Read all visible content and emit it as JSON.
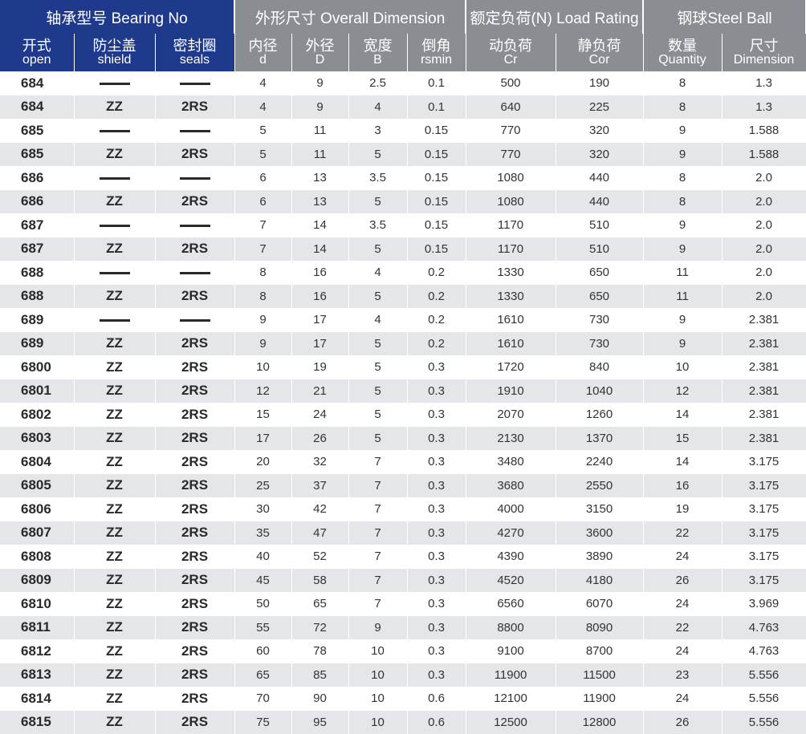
{
  "header": {
    "groups": {
      "bearing": "轴承型号 Bearing No",
      "dimension": "外形尺寸 Overall Dimension",
      "load": "额定负荷(N) Load Rating",
      "ball": "钢球Steel Ball"
    },
    "columns": {
      "open": {
        "zh": "开式",
        "en": "open"
      },
      "shield": {
        "zh": "防尘盖",
        "en": "shield"
      },
      "seals": {
        "zh": "密封圈",
        "en": "seals"
      },
      "d": {
        "zh": "内径",
        "en": "d"
      },
      "D": {
        "zh": "外径",
        "en": "D"
      },
      "B": {
        "zh": "宽度",
        "en": "B"
      },
      "rsmin": {
        "zh": "倒角",
        "en": "rsmin"
      },
      "Cr": {
        "zh": "动负荷",
        "en": "Cr"
      },
      "Cor": {
        "zh": "静负荷",
        "en": "Cor"
      },
      "qty": {
        "zh": "数量",
        "en": "Quantity"
      },
      "dim": {
        "zh": "尺寸",
        "en": "Dimension"
      }
    }
  },
  "rows": [
    [
      "684",
      "—",
      "—",
      "4",
      "9",
      "2.5",
      "0.1",
      "500",
      "190",
      "8",
      "1.3"
    ],
    [
      "684",
      "ZZ",
      "2RS",
      "4",
      "9",
      "4",
      "0.1",
      "640",
      "225",
      "8",
      "1.3"
    ],
    [
      "685",
      "—",
      "—",
      "5",
      "11",
      "3",
      "0.15",
      "770",
      "320",
      "9",
      "1.588"
    ],
    [
      "685",
      "ZZ",
      "2RS",
      "5",
      "11",
      "5",
      "0.15",
      "770",
      "320",
      "9",
      "1.588"
    ],
    [
      "686",
      "—",
      "—",
      "6",
      "13",
      "3.5",
      "0.15",
      "1080",
      "440",
      "8",
      "2.0"
    ],
    [
      "686",
      "ZZ",
      "2RS",
      "6",
      "13",
      "5",
      "0.15",
      "1080",
      "440",
      "8",
      "2.0"
    ],
    [
      "687",
      "—",
      "—",
      "7",
      "14",
      "3.5",
      "0.15",
      "1170",
      "510",
      "9",
      "2.0"
    ],
    [
      "687",
      "ZZ",
      "2RS",
      "7",
      "14",
      "5",
      "0.15",
      "1170",
      "510",
      "9",
      "2.0"
    ],
    [
      "688",
      "—",
      "—",
      "8",
      "16",
      "4",
      "0.2",
      "1330",
      "650",
      "11",
      "2.0"
    ],
    [
      "688",
      "ZZ",
      "2RS",
      "8",
      "16",
      "5",
      "0.2",
      "1330",
      "650",
      "11",
      "2.0"
    ],
    [
      "689",
      "—",
      "—",
      "9",
      "17",
      "4",
      "0.2",
      "1610",
      "730",
      "9",
      "2.381"
    ],
    [
      "689",
      "ZZ",
      "2RS",
      "9",
      "17",
      "5",
      "0.2",
      "1610",
      "730",
      "9",
      "2.381"
    ],
    [
      "6800",
      "ZZ",
      "2RS",
      "10",
      "19",
      "5",
      "0.3",
      "1720",
      "840",
      "10",
      "2.381"
    ],
    [
      "6801",
      "ZZ",
      "2RS",
      "12",
      "21",
      "5",
      "0.3",
      "1910",
      "1040",
      "12",
      "2.381"
    ],
    [
      "6802",
      "ZZ",
      "2RS",
      "15",
      "24",
      "5",
      "0.3",
      "2070",
      "1260",
      "14",
      "2.381"
    ],
    [
      "6803",
      "ZZ",
      "2RS",
      "17",
      "26",
      "5",
      "0.3",
      "2130",
      "1370",
      "15",
      "2.381"
    ],
    [
      "6804",
      "ZZ",
      "2RS",
      "20",
      "32",
      "7",
      "0.3",
      "3480",
      "2240",
      "14",
      "3.175"
    ],
    [
      "6805",
      "ZZ",
      "2RS",
      "25",
      "37",
      "7",
      "0.3",
      "3680",
      "2550",
      "16",
      "3.175"
    ],
    [
      "6806",
      "ZZ",
      "2RS",
      "30",
      "42",
      "7",
      "0.3",
      "4000",
      "3150",
      "19",
      "3.175"
    ],
    [
      "6807",
      "ZZ",
      "2RS",
      "35",
      "47",
      "7",
      "0.3",
      "4270",
      "3600",
      "22",
      "3.175"
    ],
    [
      "6808",
      "ZZ",
      "2RS",
      "40",
      "52",
      "7",
      "0.3",
      "4390",
      "3890",
      "24",
      "3.175"
    ],
    [
      "6809",
      "ZZ",
      "2RS",
      "45",
      "58",
      "7",
      "0.3",
      "4520",
      "4180",
      "26",
      "3.175"
    ],
    [
      "6810",
      "ZZ",
      "2RS",
      "50",
      "65",
      "7",
      "0.3",
      "6560",
      "6070",
      "24",
      "3.969"
    ],
    [
      "6811",
      "ZZ",
      "2RS",
      "55",
      "72",
      "9",
      "0.3",
      "8800",
      "8090",
      "22",
      "4.763"
    ],
    [
      "6812",
      "ZZ",
      "2RS",
      "60",
      "78",
      "10",
      "0.3",
      "9100",
      "8700",
      "24",
      "4.763"
    ],
    [
      "6813",
      "ZZ",
      "2RS",
      "65",
      "85",
      "10",
      "0.3",
      "11900",
      "11500",
      "23",
      "5.556"
    ],
    [
      "6814",
      "ZZ",
      "2RS",
      "70",
      "90",
      "10",
      "0.6",
      "12100",
      "11900",
      "24",
      "5.556"
    ],
    [
      "6815",
      "ZZ",
      "2RS",
      "75",
      "95",
      "10",
      "0.6",
      "12500",
      "12800",
      "26",
      "5.556"
    ]
  ]
}
